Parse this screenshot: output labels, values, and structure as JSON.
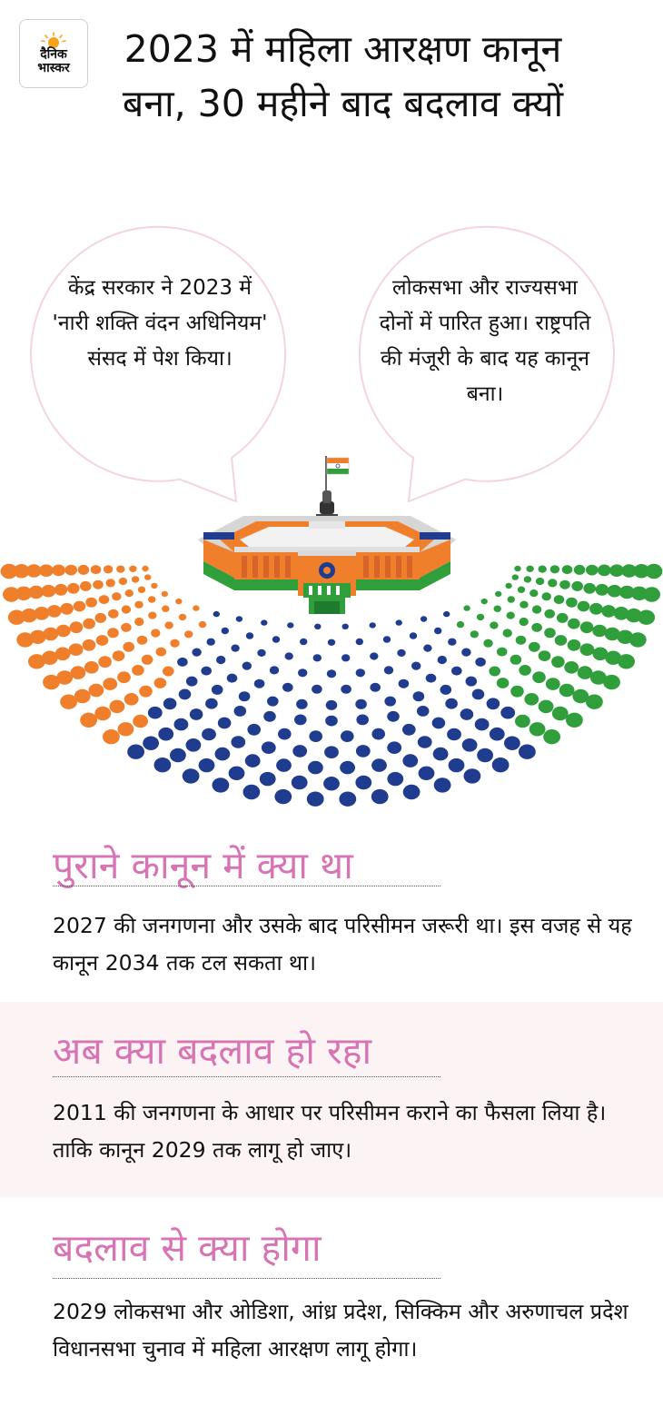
{
  "logo": {
    "line1": "दैनिक",
    "line2": "भास्कर"
  },
  "title": "2023 में महिला आरक्षण कानून बना, 30 महीने बाद बदलाव क्यों",
  "bubbles": [
    {
      "text": "केंद्र सरकार ने 2023 में 'नारी शक्ति वंदन अधिनियम' संसद में पेश किया।"
    },
    {
      "text": "लोकसभा और राज्यसभा दोनों में पारित हुआ। राष्ट्रपति की मंजूरी के बाद यह कानून बना।"
    }
  ],
  "colors": {
    "saffron": "#f07f2c",
    "navy": "#1f3c8f",
    "green": "#2f9e3b",
    "heading_pink": "#d774b4",
    "bubble_outline": "#f3d5de",
    "band_bg": "#fbf3f4"
  },
  "icons": [
    "sun-icon",
    "flag-icon",
    "ashoka-emblem-icon",
    "parliament-building-icon",
    "chakra-icon"
  ],
  "sections": [
    {
      "heading": "पुराने कानून में क्या था",
      "body": "2027 की जनगणना और उसके बाद परिसीमन जरूरी था। इस वजह से यह कानून 2034 तक टल सकता था।"
    },
    {
      "heading": "अब क्या बदलाव हो रहा",
      "body": "2011 की जनगणना के आधार पर परिसीमन कराने का फैसला लिया है। ताकि कानून 2029 तक लागू हो जाए।"
    },
    {
      "heading": "बदलाव से क्या होगा",
      "body": "2029 लोकसभा और ओडिशा, आंध्र प्रदेश, सिक्किम और अरुणाचल प्रदेश विधानसभा चुनाव में महिला आरक्षण लागू होगा।"
    }
  ]
}
